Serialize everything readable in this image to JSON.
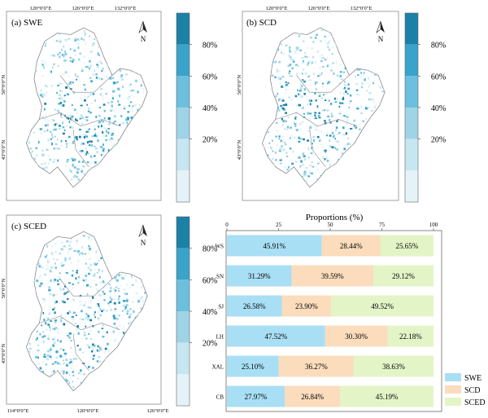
{
  "maps": [
    {
      "label": "(a) SWE",
      "top_ticks": [
        "120°0′0″E",
        "126°0′0″E",
        "132°0′0″E"
      ],
      "left_ticks": [
        "50°0′0″N",
        "43°0′0″N"
      ],
      "bottom_ticks": []
    },
    {
      "label": "(b) SCD",
      "top_ticks": [
        "120°0′0″E",
        "126°0′0″E",
        "132°0′0″E"
      ],
      "left_ticks": [
        "50°0′0″N",
        "43°0′0″N"
      ],
      "bottom_ticks": []
    },
    {
      "label": "(c) SCED",
      "top_ticks": [],
      "left_ticks": [
        "50°0′0″N",
        "43°0′0″N"
      ],
      "bottom_ticks": [
        "114°0′0″E",
        "120°0′0″E",
        "126°0′0″E"
      ]
    }
  ],
  "north_label": "N",
  "colorbar": {
    "labels": [
      "80%",
      "60%",
      "40%",
      "20%"
    ],
    "colors": [
      "#e4f3f8",
      "#c6e6f1",
      "#9fd4e7",
      "#6cc0de",
      "#3aa3c9",
      "#1b81a6"
    ]
  },
  "map_fill": {
    "base": "#ffffff",
    "border": "#888888",
    "pixel_colors": [
      "#e4f3f8",
      "#c6e6f1",
      "#9fd4e7",
      "#6cc0de",
      "#3aa3c9",
      "#1b81a6"
    ]
  },
  "chart_data": {
    "type": "bar",
    "orientation": "horizontal",
    "stacked": true,
    "title": "",
    "xlabel": "Proportions  (%)",
    "ylabel": "",
    "xlim": [
      0,
      100
    ],
    "xticks": [
      "0",
      "25",
      "50",
      "75",
      "100"
    ],
    "categories": [
      "WS",
      "SN",
      "SJ",
      "LH",
      "XAL",
      "CB"
    ],
    "series": [
      {
        "name": "SWE",
        "color": "#a9dff5",
        "values": [
          45.91,
          31.29,
          26.58,
          47.52,
          25.1,
          27.97
        ],
        "labels": [
          "45.91%",
          "31.29%",
          "26.58%",
          "47.52%",
          "25.10%",
          "27.97%"
        ]
      },
      {
        "name": "SCD",
        "color": "#fbdcbc",
        "values": [
          28.44,
          39.59,
          23.9,
          30.3,
          36.27,
          26.84
        ],
        "labels": [
          "28.44%",
          "39.59%",
          "23.90%",
          "30.30%",
          "36.27%",
          "26.84%"
        ]
      },
      {
        "name": "SCED",
        "color": "#e3f5c7",
        "values": [
          25.65,
          29.12,
          49.52,
          22.18,
          38.63,
          45.19
        ],
        "labels": [
          "25.65%",
          "29.12%",
          "49.52%",
          "22.18%",
          "38.63%",
          "45.19%"
        ]
      }
    ],
    "legend_position": "bottom-right"
  }
}
